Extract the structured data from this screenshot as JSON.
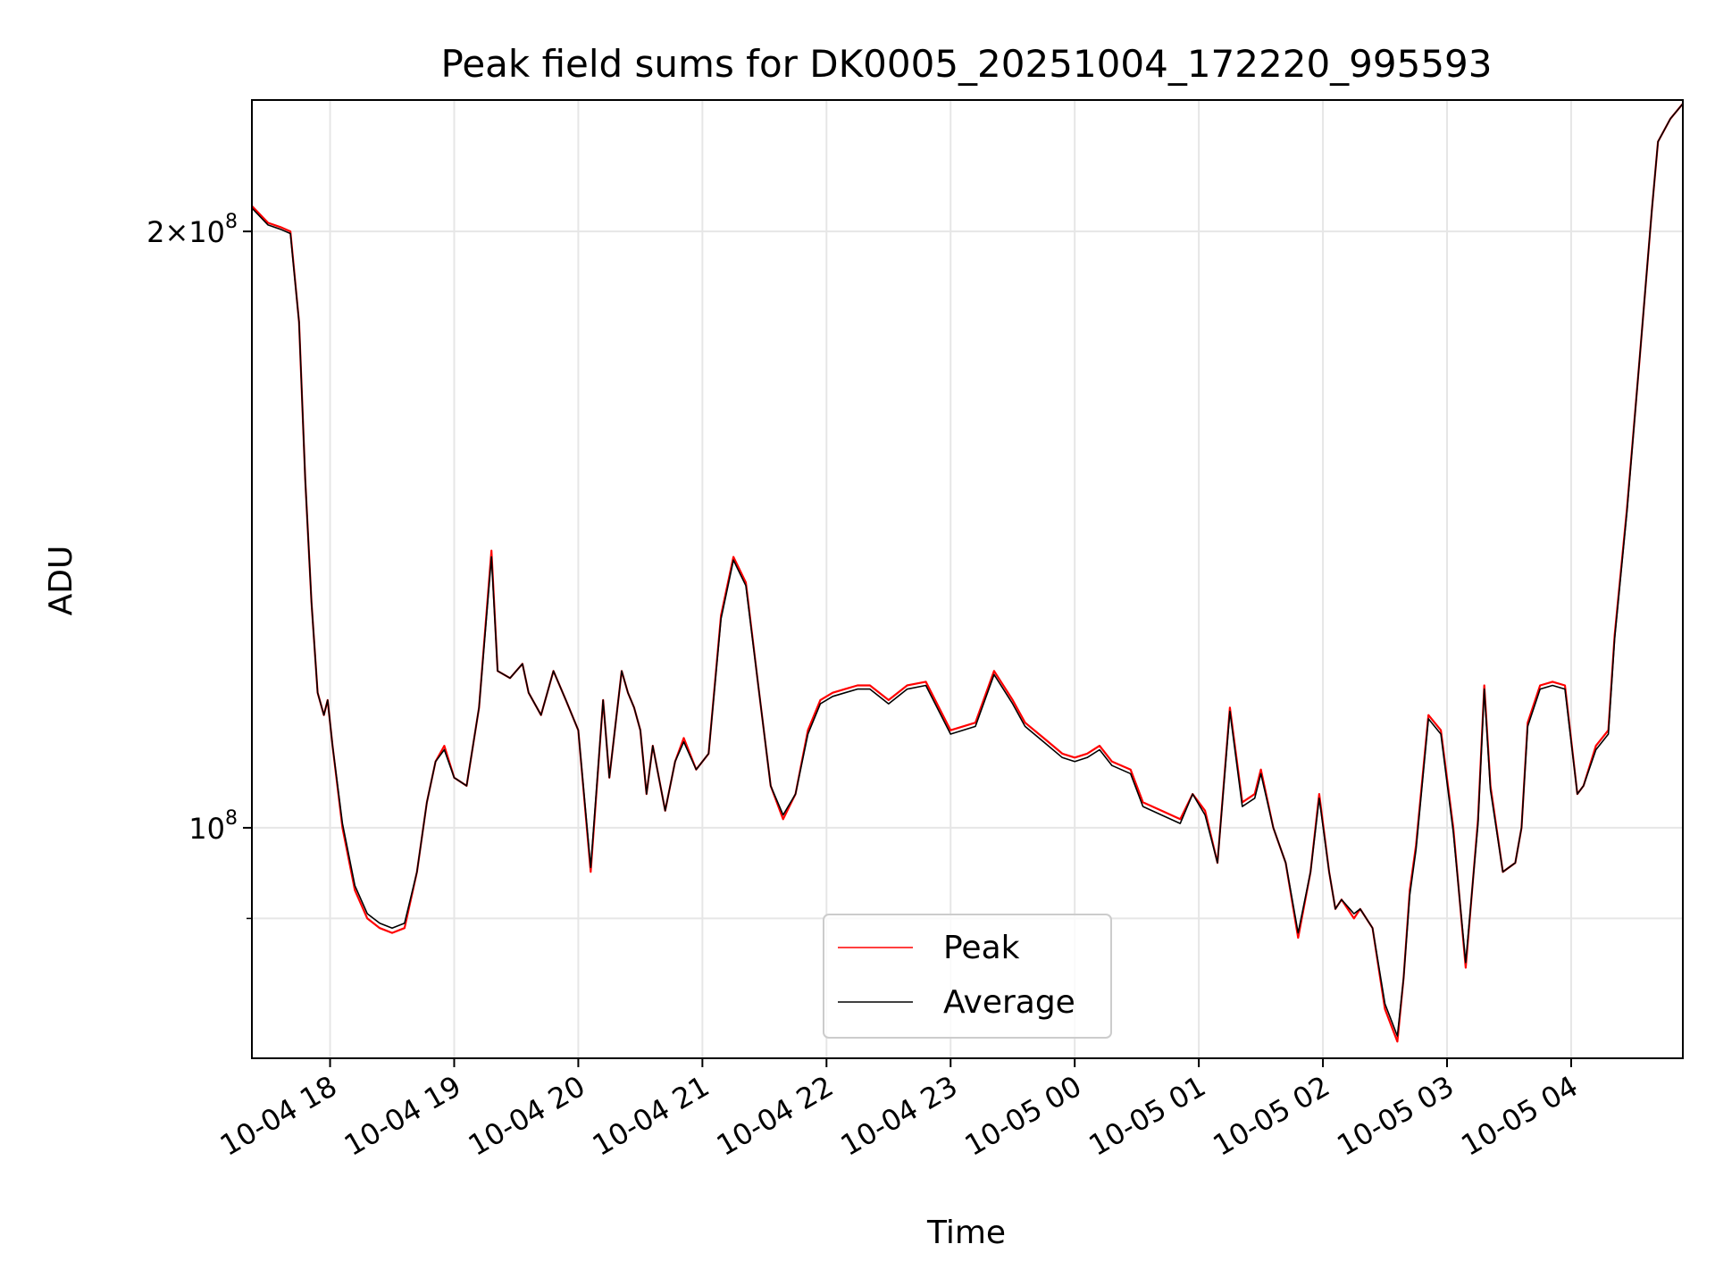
{
  "chart_data": {
    "type": "line",
    "title": "Peak field sums for DK0005_20251004_172220_995593",
    "xlabel": "Time",
    "ylabel": "ADU",
    "x_ticks": [
      "10-04 18",
      "10-04 19",
      "10-04 20",
      "10-04 21",
      "10-04 22",
      "10-04 23",
      "10-05 00",
      "10-05 01",
      "10-05 02",
      "10-05 03",
      "10-05 04"
    ],
    "x_tick_hours": [
      18,
      19,
      20,
      21,
      22,
      23,
      24,
      25,
      26,
      27,
      28
    ],
    "xlim": [
      17.37,
      28.9
    ],
    "y_scale": "log",
    "ylim": [
      76500000,
      233000000
    ],
    "y_ticks": [
      {
        "value": 100000000,
        "mantissa": "",
        "exponent": "8"
      },
      {
        "value": 200000000,
        "mantissa": "2",
        "exponent": "8"
      }
    ],
    "y_minor_ticks": [
      90000000
    ],
    "grid": true,
    "legend": {
      "position": "bottom-center",
      "entries": [
        "Peak",
        "Average"
      ]
    },
    "colors": {
      "peak": "#ff0000",
      "average": "#000000",
      "grid": "#e6e6e6"
    },
    "series": [
      {
        "name": "Peak",
        "color": "#ff0000",
        "x": [
          17.37,
          17.5,
          17.6,
          17.68,
          17.75,
          17.8,
          17.85,
          17.9,
          17.95,
          17.98,
          18.02,
          18.1,
          18.2,
          18.3,
          18.4,
          18.5,
          18.6,
          18.7,
          18.78,
          18.85,
          18.92,
          19.0,
          19.1,
          19.2,
          19.3,
          19.35,
          19.45,
          19.55,
          19.6,
          19.7,
          19.8,
          19.9,
          20.0,
          20.1,
          20.2,
          20.25,
          20.35,
          20.4,
          20.45,
          20.5,
          20.55,
          20.6,
          20.7,
          20.78,
          20.85,
          20.95,
          21.05,
          21.15,
          21.25,
          21.35,
          21.45,
          21.55,
          21.65,
          21.75,
          21.85,
          21.95,
          22.05,
          22.15,
          22.25,
          22.35,
          22.5,
          22.65,
          22.8,
          23.0,
          23.2,
          23.35,
          23.5,
          23.6,
          23.75,
          23.9,
          24.0,
          24.1,
          24.2,
          24.3,
          24.45,
          24.55,
          24.7,
          24.85,
          24.95,
          25.05,
          25.15,
          25.25,
          25.35,
          25.45,
          25.5,
          25.6,
          25.7,
          25.8,
          25.9,
          25.97,
          26.05,
          26.1,
          26.15,
          26.25,
          26.3,
          26.4,
          26.5,
          26.6,
          26.65,
          26.7,
          26.75,
          26.85,
          26.95,
          27.05,
          27.15,
          27.25,
          27.3,
          27.35,
          27.45,
          27.55,
          27.6,
          27.65,
          27.75,
          27.85,
          27.95,
          28.05,
          28.1,
          28.2,
          28.3,
          28.35,
          28.45,
          28.55,
          28.65,
          28.7,
          28.8,
          28.9
        ],
        "y": [
          206000000,
          202000000,
          201000000,
          200000000,
          180000000,
          150000000,
          130000000,
          117000000,
          114000000,
          116000000,
          110000000,
          100000000,
          93000000,
          90000000,
          89000000,
          88500000,
          89000000,
          95000000,
          103000000,
          108000000,
          110000000,
          106000000,
          105000000,
          115000000,
          138000000,
          120000000,
          119000000,
          121000000,
          117000000,
          114000000,
          120000000,
          116000000,
          112000000,
          95000000,
          116000000,
          106000000,
          120000000,
          117000000,
          115000000,
          112000000,
          104000000,
          110000000,
          102000000,
          108000000,
          111000000,
          107000000,
          109000000,
          128000000,
          137000000,
          133000000,
          118000000,
          105000000,
          101000000,
          104000000,
          112000000,
          116000000,
          117000000,
          117500000,
          118000000,
          118000000,
          116000000,
          118000000,
          118500000,
          112000000,
          113000000,
          120000000,
          116000000,
          113000000,
          111000000,
          109000000,
          108500000,
          109000000,
          110000000,
          108000000,
          107000000,
          103000000,
          102000000,
          101000000,
          104000000,
          102000000,
          96000000,
          115000000,
          103000000,
          104000000,
          107000000,
          100000000,
          96000000,
          88000000,
          95000000,
          104000000,
          95000000,
          91000000,
          92000000,
          90000000,
          91000000,
          89000000,
          81000000,
          78000000,
          84000000,
          93000000,
          98000000,
          114000000,
          112000000,
          100000000,
          85000000,
          101000000,
          118000000,
          105000000,
          95000000,
          96000000,
          100000000,
          113000000,
          118000000,
          118500000,
          118000000,
          104000000,
          105000000,
          110000000,
          112000000,
          125000000,
          145000000,
          172000000,
          205000000,
          222000000,
          228000000,
          232000000
        ]
      },
      {
        "name": "Average",
        "color": "#000000",
        "x": [
          17.37,
          17.5,
          17.6,
          17.68,
          17.75,
          17.8,
          17.85,
          17.9,
          17.95,
          17.98,
          18.02,
          18.1,
          18.2,
          18.3,
          18.4,
          18.5,
          18.6,
          18.7,
          18.78,
          18.85,
          18.92,
          19.0,
          19.1,
          19.2,
          19.3,
          19.35,
          19.45,
          19.55,
          19.6,
          19.7,
          19.8,
          19.9,
          20.0,
          20.1,
          20.2,
          20.25,
          20.35,
          20.4,
          20.45,
          20.5,
          20.55,
          20.6,
          20.7,
          20.78,
          20.85,
          20.95,
          21.05,
          21.15,
          21.25,
          21.35,
          21.45,
          21.55,
          21.65,
          21.75,
          21.85,
          21.95,
          22.05,
          22.15,
          22.25,
          22.35,
          22.5,
          22.65,
          22.8,
          23.0,
          23.2,
          23.35,
          23.5,
          23.6,
          23.75,
          23.9,
          24.0,
          24.1,
          24.2,
          24.3,
          24.45,
          24.55,
          24.7,
          24.85,
          24.95,
          25.05,
          25.15,
          25.25,
          25.35,
          25.45,
          25.5,
          25.6,
          25.7,
          25.8,
          25.9,
          25.97,
          26.05,
          26.1,
          26.15,
          26.25,
          26.3,
          26.4,
          26.5,
          26.6,
          26.65,
          26.7,
          26.75,
          26.85,
          26.95,
          27.05,
          27.15,
          27.25,
          27.3,
          27.35,
          27.45,
          27.55,
          27.6,
          27.65,
          27.75,
          27.85,
          27.95,
          28.05,
          28.1,
          28.2,
          28.3,
          28.35,
          28.45,
          28.55,
          28.65,
          28.7,
          28.8,
          28.9
        ],
        "y": [
          205500000,
          201500000,
          200500000,
          199500000,
          180000000,
          150000000,
          130000000,
          117000000,
          114000000,
          116000000,
          110000000,
          100500000,
          93500000,
          90500000,
          89500000,
          89000000,
          89500000,
          95000000,
          103000000,
          108000000,
          109500000,
          106000000,
          105000000,
          115000000,
          137000000,
          120000000,
          119000000,
          121000000,
          117000000,
          114000000,
          120000000,
          116000000,
          112000000,
          95500000,
          116000000,
          106000000,
          120000000,
          117000000,
          115000000,
          112000000,
          104000000,
          110000000,
          102000000,
          108000000,
          110500000,
          107000000,
          109000000,
          127500000,
          136500000,
          132500000,
          118000000,
          105000000,
          101500000,
          104000000,
          111500000,
          115500000,
          116500000,
          117000000,
          117500000,
          117500000,
          115500000,
          117500000,
          118000000,
          111500000,
          112500000,
          119500000,
          115500000,
          112500000,
          110500000,
          108500000,
          108000000,
          108500000,
          109500000,
          107500000,
          106500000,
          102500000,
          101500000,
          100500000,
          104000000,
          101500000,
          96000000,
          114500000,
          102500000,
          103500000,
          106500000,
          100000000,
          96000000,
          88500000,
          95000000,
          103500000,
          95000000,
          91000000,
          92000000,
          90500000,
          91000000,
          89000000,
          81500000,
          78500000,
          84000000,
          92500000,
          97500000,
          113500000,
          111500000,
          99500000,
          85500000,
          100500000,
          117500000,
          104500000,
          95000000,
          96000000,
          100000000,
          112500000,
          117500000,
          118000000,
          117500000,
          104000000,
          105000000,
          109500000,
          111500000,
          124500000,
          144500000,
          172000000,
          205000000,
          222000000,
          228000000,
          232000000
        ]
      }
    ]
  }
}
